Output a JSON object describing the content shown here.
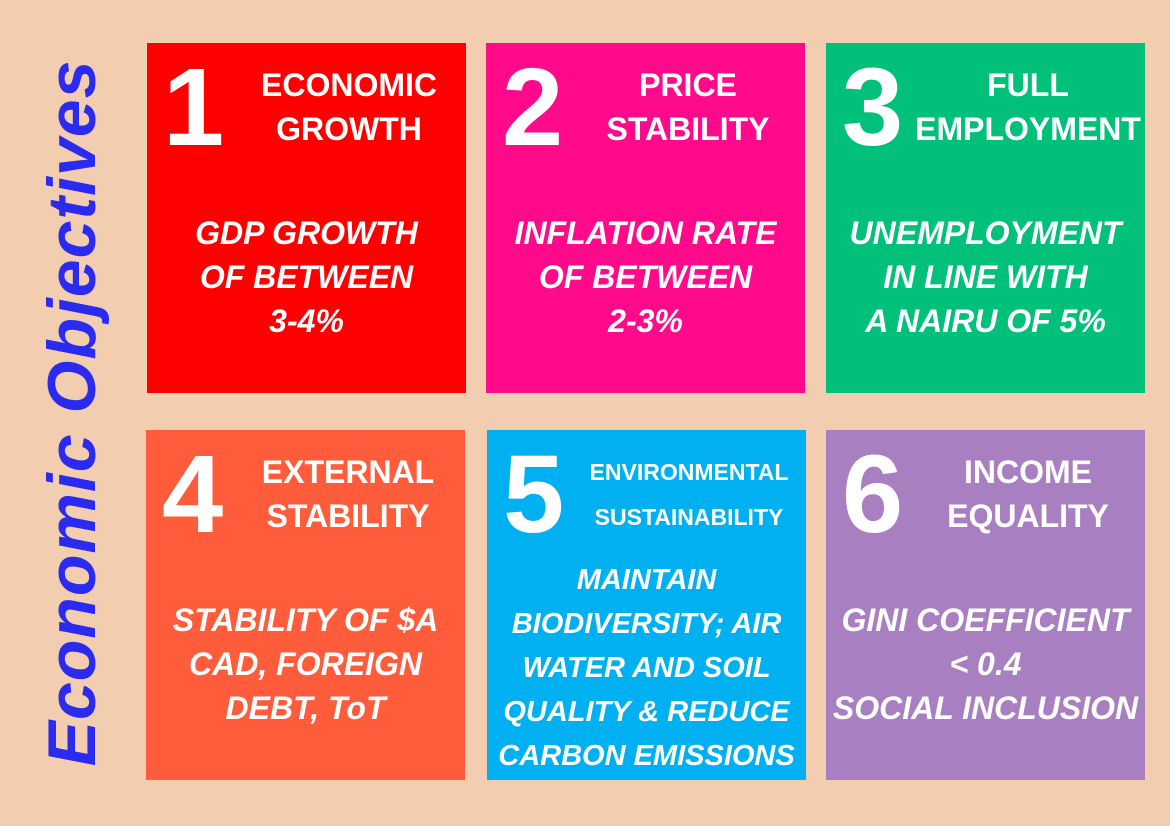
{
  "title": "Economic Objectives",
  "colors": {
    "background": "#f3cdb0",
    "title": "#2b2bf0"
  },
  "objectives": [
    {
      "number": "1",
      "heading": [
        "ECONOMIC",
        "GROWTH"
      ],
      "body": [
        "GDP GROWTH",
        "OF BETWEEN",
        "3-4%"
      ],
      "color": "#ff0000"
    },
    {
      "number": "2",
      "heading": [
        "PRICE",
        "STABILITY"
      ],
      "body": [
        "INFLATION RATE",
        "OF BETWEEN",
        "2-3%"
      ],
      "color": "#ff0a8a"
    },
    {
      "number": "3",
      "heading": [
        "FULL",
        "EMPLOYMENT"
      ],
      "body": [
        "UNEMPLOYMENT",
        "IN LINE WITH",
        "A NAIRU OF 5%"
      ],
      "color": "#00c07a"
    },
    {
      "number": "4",
      "heading": [
        "EXTERNAL",
        "STABILITY"
      ],
      "body": [
        "STABILITY OF $A",
        "CAD, FOREIGN",
        "DEBT, ToT"
      ],
      "color": "#ff5c3c"
    },
    {
      "number": "5",
      "heading": [
        "ENVIRONMENTAL",
        "SUSTAINABILITY"
      ],
      "body": [
        "MAINTAIN",
        "BIODIVERSITY; AIR",
        "WATER AND SOIL",
        "QUALITY & REDUCE",
        "CARBON EMISSIONS"
      ],
      "color": "#00b0f0"
    },
    {
      "number": "6",
      "heading": [
        "INCOME",
        "EQUALITY"
      ],
      "body": [
        "GINI COEFFICIENT",
        "< 0.4",
        "SOCIAL INCLUSION"
      ],
      "color": "#a87fc0"
    }
  ]
}
